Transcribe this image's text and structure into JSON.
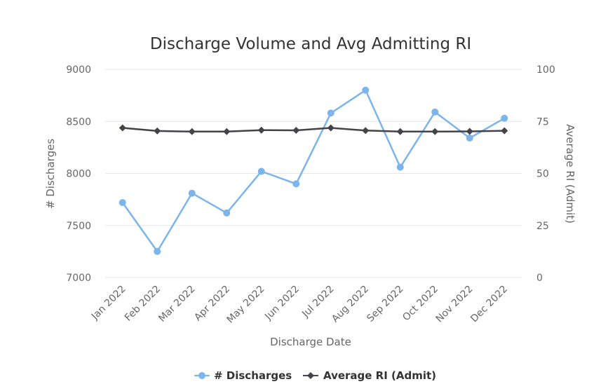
{
  "chart_data": {
    "type": "line",
    "title": "Discharge Volume and Avg Admitting RI",
    "xlabel": "Discharge Date",
    "ylabel": "# Discharges",
    "y2label": "Average RI (Admit)",
    "categories": [
      "Jan 2022",
      "Feb 2022",
      "Mar 2022",
      "Apr 2022",
      "May 2022",
      "Jun 2022",
      "Jul 2022",
      "Aug 2022",
      "Sep 2022",
      "Oct 2022",
      "Nov 2022",
      "Dec 2022"
    ],
    "ylim": [
      7000,
      9000
    ],
    "yticks": [
      7000,
      7500,
      8000,
      8500,
      9000
    ],
    "y2lim": [
      0,
      100
    ],
    "y2ticks": [
      0,
      25,
      50,
      75,
      100
    ],
    "grid": true,
    "legend_position": "bottom-center",
    "series": [
      {
        "name": "# Discharges",
        "axis": "left",
        "color": "#7cb5ec",
        "marker": "circle",
        "values": [
          7720,
          7250,
          7810,
          7620,
          8020,
          7900,
          8580,
          8800,
          8060,
          8590,
          8340,
          8530
        ]
      },
      {
        "name": "Average RI (Admit)",
        "axis": "right",
        "color": "#434348",
        "marker": "diamond",
        "values": [
          71.9,
          70.4,
          70.1,
          70.1,
          70.8,
          70.7,
          71.9,
          70.6,
          70.1,
          70.1,
          70.2,
          70.5
        ]
      }
    ]
  }
}
